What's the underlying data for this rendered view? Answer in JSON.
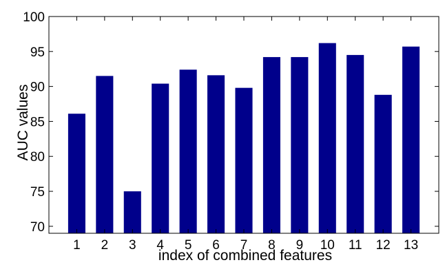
{
  "chart_data": {
    "type": "bar",
    "xlabel": "index of combined features",
    "ylabel": "AUC values",
    "categories": [
      "1",
      "2",
      "3",
      "4",
      "5",
      "6",
      "7",
      "8",
      "9",
      "10",
      "11",
      "12",
      "13"
    ],
    "values": [
      86.1,
      91.5,
      75.0,
      90.4,
      92.4,
      91.6,
      89.8,
      94.2,
      94.2,
      96.2,
      94.5,
      88.8,
      95.7
    ],
    "ylim": [
      69,
      100
    ],
    "yticks": [
      "70",
      "75",
      "80",
      "85",
      "90",
      "95",
      "100"
    ],
    "grid": false,
    "legend": "none",
    "bar_color": "#00008B",
    "axis_color": "#000000"
  }
}
